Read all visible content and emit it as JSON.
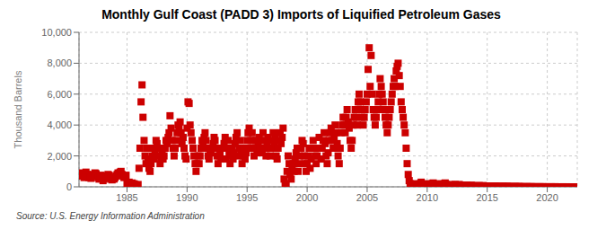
{
  "chart_data": {
    "type": "scatter",
    "title": "Monthly Gulf Coast (PADD 3) Imports of Liquified Petroleum Gases",
    "ylabel": "Thousand Barrels",
    "source": "Source: U.S. Energy Information Administration",
    "color": "#cc0000",
    "marker": "square",
    "grid": true,
    "xlim": [
      1981.0,
      2022.5
    ],
    "xticks": [
      1985,
      1990,
      1995,
      2000,
      2005,
      2010,
      2015,
      2020
    ],
    "ylim": [
      0,
      10000
    ],
    "yticks": [
      0,
      {
        "value": 2000,
        "label": "2,000"
      },
      {
        "value": 4000,
        "label": "4,000"
      },
      {
        "value": 6000,
        "label": "6,000"
      },
      {
        "value": 8000,
        "label": "8,000"
      },
      {
        "value": 10000,
        "label": "10,000"
      }
    ],
    "x": [
      1981.0,
      1981.08,
      1981.17,
      1981.25,
      1981.33,
      1981.42,
      1981.5,
      1981.58,
      1981.67,
      1981.75,
      1981.83,
      1981.92,
      1982.0,
      1982.08,
      1982.17,
      1982.25,
      1982.33,
      1982.42,
      1982.5,
      1982.58,
      1982.67,
      1982.75,
      1982.83,
      1982.92,
      1983.0,
      1983.08,
      1983.17,
      1983.25,
      1983.33,
      1983.42,
      1983.5,
      1983.58,
      1983.67,
      1983.75,
      1983.83,
      1983.92,
      1984.0,
      1984.08,
      1984.17,
      1984.25,
      1984.33,
      1984.42,
      1984.5,
      1984.58,
      1984.67,
      1984.75,
      1984.83,
      1984.92,
      1985.0,
      1985.08,
      1985.17,
      1985.25,
      1985.33,
      1985.42,
      1985.5,
      1985.58,
      1985.67,
      1985.75,
      1985.83,
      1985.92,
      1986.0,
      1986.08,
      1986.17,
      1986.25,
      1986.33,
      1986.42,
      1986.5,
      1986.58,
      1986.67,
      1986.75,
      1986.83,
      1986.92,
      1987.0,
      1987.08,
      1987.17,
      1987.25,
      1987.33,
      1987.42,
      1987.5,
      1987.58,
      1987.67,
      1987.75,
      1987.83,
      1987.92,
      1988.0,
      1988.08,
      1988.17,
      1988.25,
      1988.33,
      1988.42,
      1988.5,
      1988.58,
      1988.67,
      1988.75,
      1988.83,
      1988.92,
      1989.0,
      1989.08,
      1989.17,
      1989.25,
      1989.33,
      1989.42,
      1989.5,
      1989.58,
      1989.67,
      1989.75,
      1989.83,
      1989.92,
      1990.0,
      1990.08,
      1990.17,
      1990.25,
      1990.33,
      1990.42,
      1990.5,
      1990.58,
      1990.67,
      1990.75,
      1990.83,
      1990.92,
      1991.0,
      1991.08,
      1991.17,
      1991.25,
      1991.33,
      1991.42,
      1991.5,
      1991.58,
      1991.67,
      1991.75,
      1991.83,
      1991.92,
      1992.0,
      1992.08,
      1992.17,
      1992.25,
      1992.33,
      1992.42,
      1992.5,
      1992.58,
      1992.67,
      1992.75,
      1992.83,
      1992.92,
      1993.0,
      1993.08,
      1993.17,
      1993.25,
      1993.33,
      1993.42,
      1993.5,
      1993.58,
      1993.67,
      1993.75,
      1993.83,
      1993.92,
      1994.0,
      1994.08,
      1994.17,
      1994.25,
      1994.33,
      1994.42,
      1994.5,
      1994.58,
      1994.67,
      1994.75,
      1994.83,
      1994.92,
      1995.0,
      1995.08,
      1995.17,
      1995.25,
      1995.33,
      1995.42,
      1995.5,
      1995.58,
      1995.67,
      1995.75,
      1995.83,
      1995.92,
      1996.0,
      1996.08,
      1996.17,
      1996.25,
      1996.33,
      1996.42,
      1996.5,
      1996.58,
      1996.67,
      1996.75,
      1996.83,
      1996.92,
      1997.0,
      1997.08,
      1997.17,
      1997.25,
      1997.33,
      1997.42,
      1997.5,
      1997.58,
      1997.67,
      1997.75,
      1997.83,
      1997.92,
      1998.0,
      1998.08,
      1998.17,
      1998.25,
      1998.33,
      1998.42,
      1998.5,
      1998.58,
      1998.67,
      1998.75,
      1998.83,
      1998.92,
      1999.0,
      1999.08,
      1999.17,
      1999.25,
      1999.33,
      1999.42,
      1999.5,
      1999.58,
      1999.67,
      1999.75,
      1999.83,
      1999.92,
      2000.0,
      2000.08,
      2000.17,
      2000.25,
      2000.33,
      2000.42,
      2000.5,
      2000.58,
      2000.67,
      2000.75,
      2000.83,
      2000.92,
      2001.0,
      2001.08,
      2001.17,
      2001.25,
      2001.33,
      2001.42,
      2001.5,
      2001.58,
      2001.67,
      2001.75,
      2001.83,
      2001.92,
      2002.0,
      2002.08,
      2002.17,
      2002.25,
      2002.33,
      2002.42,
      2002.5,
      2002.58,
      2002.67,
      2002.75,
      2002.83,
      2002.92,
      2003.0,
      2003.08,
      2003.17,
      2003.25,
      2003.33,
      2003.42,
      2003.5,
      2003.58,
      2003.67,
      2003.75,
      2003.83,
      2003.92,
      2004.0,
      2004.08,
      2004.17,
      2004.25,
      2004.33,
      2004.42,
      2004.5,
      2004.58,
      2004.67,
      2004.75,
      2004.83,
      2004.92,
      2005.0,
      2005.08,
      2005.17,
      2005.25,
      2005.33,
      2005.42,
      2005.5,
      2005.58,
      2005.67,
      2005.75,
      2005.83,
      2005.92,
      2006.0,
      2006.08,
      2006.17,
      2006.25,
      2006.33,
      2006.42,
      2006.5,
      2006.58,
      2006.67,
      2006.75,
      2006.83,
      2006.92,
      2007.0,
      2007.08,
      2007.17,
      2007.25,
      2007.33,
      2007.42,
      2007.5,
      2007.58,
      2007.67,
      2007.75,
      2007.83,
      2007.92,
      2008.0,
      2008.08,
      2008.17,
      2008.25,
      2008.33,
      2008.42,
      2008.5,
      2008.58,
      2008.67,
      2008.75,
      2008.83,
      2008.92,
      2009.0,
      2009.08,
      2009.17,
      2009.25,
      2009.33,
      2009.42,
      2009.5,
      2009.58,
      2009.67,
      2009.75,
      2009.83,
      2009.92,
      2010.0,
      2010.08,
      2010.17,
      2010.25,
      2010.33,
      2010.42,
      2010.5,
      2010.58,
      2010.67,
      2010.75,
      2010.83,
      2010.92,
      2011.0,
      2011.08,
      2011.17,
      2011.25,
      2011.33,
      2011.42,
      2011.5,
      2011.58,
      2011.67,
      2011.75,
      2011.83,
      2011.92,
      2012.0,
      2012.08,
      2012.17,
      2012.25,
      2012.33,
      2012.42,
      2012.5,
      2012.58,
      2012.67,
      2012.75,
      2012.83,
      2012.92,
      2013.0,
      2013.08,
      2013.17,
      2013.25,
      2013.33,
      2013.42,
      2013.5,
      2013.58,
      2013.67,
      2013.75,
      2013.83,
      2013.92,
      2014.0,
      2014.08,
      2014.17,
      2014.25,
      2014.33,
      2014.42,
      2014.5,
      2014.58,
      2014.67,
      2014.75,
      2014.83,
      2014.92,
      2015.0,
      2015.08,
      2015.17,
      2015.25,
      2015.33,
      2015.42,
      2015.5,
      2015.58,
      2015.67,
      2015.75,
      2015.83,
      2015.92,
      2016.0,
      2016.08,
      2016.17,
      2016.25,
      2016.33,
      2016.42,
      2016.5,
      2016.58,
      2016.67,
      2016.75,
      2016.83,
      2016.92,
      2017.0,
      2017.08,
      2017.17,
      2017.25,
      2017.33,
      2017.42,
      2017.5,
      2017.58,
      2017.67,
      2017.75,
      2017.83,
      2017.92,
      2018.0,
      2018.08,
      2018.17,
      2018.25,
      2018.33,
      2018.42,
      2018.5,
      2018.58,
      2018.67,
      2018.75,
      2018.83,
      2018.92,
      2019.0,
      2019.08,
      2019.17,
      2019.25,
      2019.33,
      2019.42,
      2019.5,
      2019.58,
      2019.67,
      2019.75,
      2019.83,
      2019.92,
      2020.0,
      2020.08,
      2020.17,
      2020.25,
      2020.33,
      2020.42,
      2020.5,
      2020.58,
      2020.67,
      2020.75,
      2020.83,
      2020.92,
      2021.0,
      2021.08,
      2021.17,
      2021.25,
      2021.33,
      2021.42,
      2021.5,
      2021.58,
      2021.67,
      2021.75,
      2021.83,
      2021.92,
      2022.0,
      2022.08,
      2022.17,
      2022.25,
      2022.33,
      2022.42
    ],
    "values": [
      900,
      800,
      700,
      750,
      850,
      600,
      700,
      950,
      800,
      750,
      600,
      650,
      550,
      700,
      800,
      750,
      900,
      850,
      700,
      600,
      500,
      650,
      750,
      600,
      400,
      500,
      600,
      700,
      650,
      800,
      750,
      600,
      500,
      450,
      550,
      500,
      600,
      700,
      800,
      900,
      850,
      950,
      1000,
      800,
      700,
      600,
      700,
      750,
      200,
      100,
      300,
      150,
      200,
      250,
      100,
      200,
      150,
      50,
      100,
      150,
      1200,
      2500,
      5500,
      6600,
      4500,
      3000,
      2000,
      1500,
      2500,
      1800,
      1200,
      1000,
      1500,
      2000,
      2500,
      1800,
      2200,
      3000,
      2800,
      2500,
      2000,
      1500,
      1800,
      2200,
      1800,
      2000,
      2500,
      3000,
      2800,
      3200,
      3500,
      4600,
      3800,
      3000,
      2500,
      2000,
      2500,
      3000,
      3500,
      4000,
      3800,
      4200,
      3500,
      2800,
      3200,
      2500,
      2000,
      1800,
      3800,
      5500,
      5400,
      4000,
      3500,
      3000,
      2500,
      2000,
      1500,
      1000,
      1500,
      2000,
      1500,
      2000,
      2500,
      3000,
      2800,
      3200,
      3500,
      3000,
      2500,
      2000,
      1800,
      2200,
      2200,
      2500,
      2800,
      3200,
      3000,
      2500,
      2000,
      1500,
      2000,
      2200,
      1800,
      2500,
      2500,
      2800,
      3200,
      1800,
      2500,
      3000,
      2200,
      1500,
      2000,
      2500,
      1800,
      2200,
      2800,
      3200,
      3500,
      2000,
      2500,
      3000,
      2200,
      1500,
      2000,
      2500,
      1800,
      2200,
      3000,
      3500,
      3800,
      2500,
      3000,
      3500,
      3000,
      2000,
      2500,
      3000,
      2200,
      2800,
      3200,
      2500,
      3000,
      2200,
      3500,
      3000,
      2500,
      2000,
      2800,
      3200,
      2500,
      2000,
      2500,
      3000,
      3500,
      2800,
      3200,
      2000,
      1800,
      2500,
      3000,
      3500,
      2800,
      3200,
      3800,
      500,
      100,
      200,
      1000,
      2000,
      1500,
      800,
      500,
      1200,
      1500,
      1000,
      1800,
      2200,
      2500,
      1000,
      1500,
      2000,
      2500,
      3000,
      2800,
      2000,
      1500,
      1000,
      1500,
      2000,
      2500,
      1200,
      1800,
      2500,
      3000,
      2500,
      2000,
      1500,
      2000,
      2500,
      3200,
      2500,
      1800,
      2500,
      3000,
      3500,
      2800,
      2000,
      1500,
      2200,
      3000,
      3500,
      3800,
      3000,
      2500,
      3200,
      4000,
      3500,
      2800,
      2000,
      1500,
      2500,
      3500,
      4000,
      4500,
      4000,
      3500,
      4500,
      5000,
      4200,
      3800,
      3000,
      2500,
      3000,
      4000,
      4500,
      5000,
      4500,
      4000,
      5500,
      6000,
      5500,
      5000,
      4500,
      4000,
      4500,
      5000,
      5500,
      6000,
      7600,
      9000,
      6500,
      8500,
      6000,
      5000,
      4500,
      4000,
      4500,
      5000,
      5500,
      6000,
      7000,
      6500,
      6000,
      5500,
      5000,
      4500,
      4000,
      3500,
      4000,
      4500,
      5000,
      5500,
      6000,
      6500,
      7000,
      6500,
      7500,
      7800,
      8000,
      7200,
      6500,
      5500,
      5000,
      4500,
      4000,
      3500,
      2500,
      1500,
      800,
      400,
      200,
      100,
      50,
      80,
      150,
      200,
      100,
      50,
      100,
      150,
      200,
      300,
      200,
      100,
      50,
      100,
      150,
      100,
      150,
      200,
      100,
      150,
      200,
      250,
      200,
      100,
      50,
      100,
      150,
      100,
      150,
      200,
      150,
      100,
      200,
      250,
      150,
      100,
      50,
      80,
      100,
      100,
      150,
      80,
      100,
      150,
      100,
      80,
      100,
      150,
      100,
      80,
      50,
      80,
      100,
      50,
      80,
      100,
      80,
      50,
      80,
      100,
      80,
      50,
      30,
      50,
      80,
      30,
      50,
      80,
      50,
      30,
      50,
      80,
      50,
      30,
      20,
      30,
      50,
      20,
      30,
      50,
      30,
      20,
      30,
      50,
      30,
      20,
      10,
      20,
      30,
      10,
      20,
      30,
      20,
      10,
      20,
      30,
      20,
      10,
      5,
      10,
      20,
      5,
      10,
      20,
      10,
      5,
      10,
      20,
      10,
      5,
      3,
      5,
      10,
      3,
      5,
      10,
      5,
      3,
      5,
      10,
      5,
      3,
      2,
      3,
      5,
      2,
      3,
      5,
      3,
      2,
      3,
      5,
      3,
      2,
      1,
      2,
      3,
      1,
      2,
      3,
      2,
      1,
      2,
      3,
      2,
      1,
      1,
      1,
      2,
      1,
      1,
      2,
      1,
      1,
      1,
      2,
      1,
      1,
      1,
      1,
      1,
      1,
      1,
      1,
      1
    ]
  }
}
